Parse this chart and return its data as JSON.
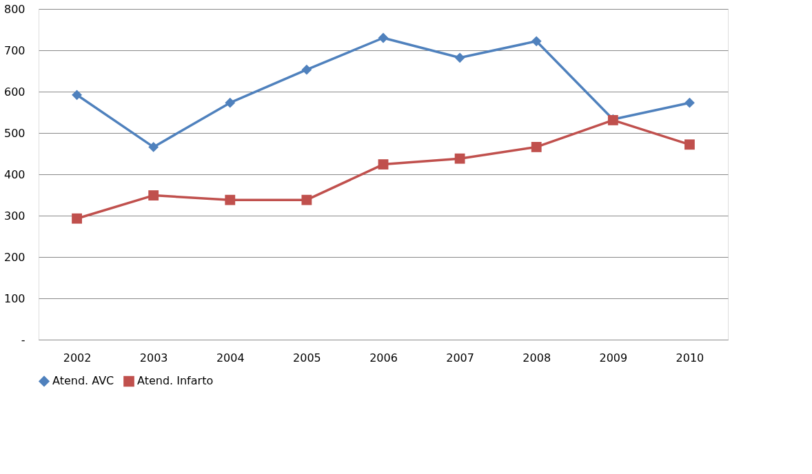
{
  "chart_data": {
    "type": "line",
    "categories": [
      "2002",
      "2003",
      "2004",
      "2005",
      "2006",
      "2007",
      "2008",
      "2009",
      "2010"
    ],
    "series": [
      {
        "name": "Atend. AVC",
        "color": "#4f81bd",
        "marker": "diamond",
        "values": [
          592,
          466,
          573,
          653,
          730,
          682,
          722,
          533,
          573
        ]
      },
      {
        "name": "Atend. Infarto",
        "color": "#c0504d",
        "marker": "square",
        "values": [
          293,
          349,
          338,
          338,
          424,
          438,
          466,
          531,
          472
        ]
      }
    ],
    "ylim": [
      0,
      800
    ],
    "yticks": [
      {
        "value": 0,
        "label": "-"
      },
      100,
      200,
      300,
      400,
      500,
      600,
      700,
      800
    ],
    "grid": "y",
    "legend": "bottom",
    "line_style": "solid"
  }
}
